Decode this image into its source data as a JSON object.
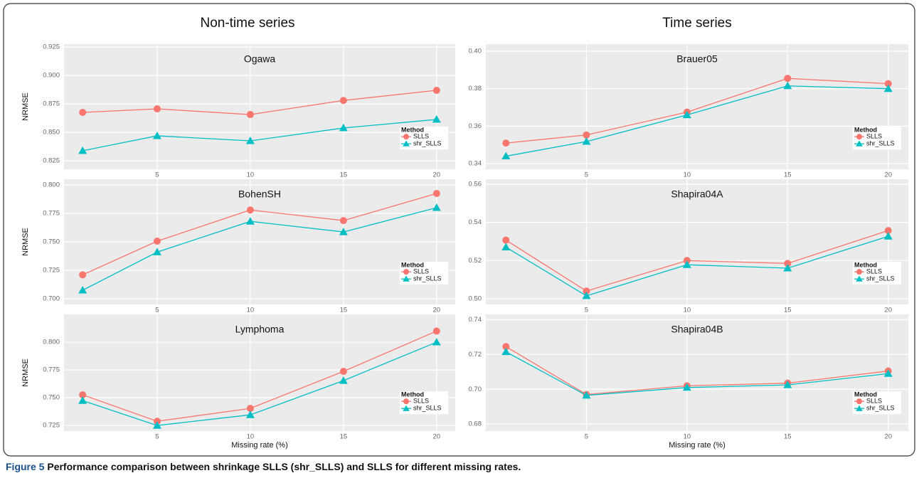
{
  "headings": [
    "Non-time series",
    "Time series"
  ],
  "caption": {
    "label": "Figure 5",
    "text": "Performance comparison between shrinkage SLLS (shr_SLLS) and SLLS for different missing rates."
  },
  "chart_data": [
    {
      "type": "line",
      "title": "Ogawa",
      "ylabel": "NRMSE",
      "legend_title": "Method",
      "legend": "right",
      "grid": true,
      "x": [
        1,
        5,
        10,
        15,
        20
      ],
      "xlim": [
        0,
        21
      ],
      "xticks": [
        5,
        10,
        15,
        20
      ],
      "ylim": [
        0.8175,
        0.9275
      ],
      "yticks": [
        0.825,
        {
          "value": 0.85,
          "label": "0.850"
        },
        0.875,
        {
          "value": 0.9,
          "label": "0.900"
        },
        0.925
      ],
      "series": [
        {
          "name": "SLLS",
          "color": "#f8766d",
          "marker": "circle",
          "values": [
            0.8675,
            0.8706,
            0.8656,
            0.878,
            0.8869
          ]
        },
        {
          "name": "shr_SLLS",
          "color": "#00bfc4",
          "marker": "triangle",
          "values": [
            0.8338,
            0.8469,
            0.8425,
            0.8538,
            0.8613
          ]
        }
      ]
    },
    {
      "type": "line",
      "title": "Brauer05",
      "legend_title": "Method",
      "legend": "right",
      "grid": true,
      "x": [
        1,
        5,
        10,
        15,
        20
      ],
      "xlim": [
        0,
        21
      ],
      "xticks": [
        5,
        10,
        15,
        20
      ],
      "ylim": [
        0.337,
        0.4038
      ],
      "yticks": [
        0.34,
        0.36,
        0.38,
        {
          "value": 0.4,
          "label": "0.40"
        }
      ],
      "series": [
        {
          "name": "SLLS",
          "color": "#f8766d",
          "marker": "circle",
          "values": [
            0.351,
            0.3553,
            0.3675,
            0.3855,
            0.3827
          ]
        },
        {
          "name": "shr_SLLS",
          "color": "#00bfc4",
          "marker": "triangle",
          "values": [
            0.344,
            0.3518,
            0.366,
            0.3815,
            0.38
          ]
        }
      ]
    },
    {
      "type": "line",
      "title": "BohenSH",
      "ylabel": "NRMSE",
      "legend_title": "Method",
      "legend": "right",
      "grid": true,
      "x": [
        1,
        5,
        10,
        15,
        20
      ],
      "xlim": [
        0,
        21
      ],
      "xticks": [
        5,
        10,
        15,
        20
      ],
      "ylim": [
        0.695,
        0.805
      ],
      "yticks": [
        {
          "value": 0.7,
          "label": "0.700"
        },
        0.725,
        {
          "value": 0.75,
          "label": "0.750"
        },
        0.775,
        {
          "value": 0.8,
          "label": "0.800"
        }
      ],
      "series": [
        {
          "name": "SLLS",
          "color": "#f8766d",
          "marker": "circle",
          "values": [
            0.721,
            0.7506,
            0.778,
            0.7687,
            0.7925
          ]
        },
        {
          "name": "shr_SLLS",
          "color": "#00bfc4",
          "marker": "triangle",
          "values": [
            0.7075,
            0.741,
            0.768,
            0.7587,
            0.78
          ]
        }
      ]
    },
    {
      "type": "line",
      "title": "Shapira04A",
      "legend_title": "Method",
      "legend": "right",
      "grid": true,
      "x": [
        1,
        5,
        10,
        15,
        20
      ],
      "xlim": [
        0,
        21
      ],
      "xticks": [
        5,
        10,
        15,
        20
      ],
      "ylim": [
        0.497,
        0.5626
      ],
      "yticks": [
        {
          "value": 0.5,
          "label": "0.50"
        },
        0.52,
        0.54,
        0.56
      ],
      "series": [
        {
          "name": "SLLS",
          "color": "#f8766d",
          "marker": "circle",
          "values": [
            0.5307,
            0.504,
            0.52,
            0.5185,
            0.5357
          ]
        },
        {
          "name": "shr_SLLS",
          "color": "#00bfc4",
          "marker": "triangle",
          "values": [
            0.527,
            0.5015,
            0.5178,
            0.516,
            0.5327
          ]
        }
      ]
    },
    {
      "type": "line",
      "title": "Lymphoma",
      "ylabel": "NRMSE",
      "xlabel": "Missing rate (%)",
      "legend_title": "Method",
      "legend": "right",
      "grid": true,
      "x": [
        1,
        5,
        10,
        15,
        20
      ],
      "xlim": [
        0,
        21
      ],
      "xticks": [
        5,
        10,
        15,
        20
      ],
      "ylim": [
        0.72,
        0.825
      ],
      "yticks": [
        0.725,
        {
          "value": 0.75,
          "label": "0.750"
        },
        0.775,
        {
          "value": 0.8,
          "label": "0.800"
        }
      ],
      "series": [
        {
          "name": "SLLS",
          "color": "#f8766d",
          "marker": "circle",
          "values": [
            0.7526,
            0.7288,
            0.7404,
            0.7737,
            0.81
          ]
        },
        {
          "name": "shr_SLLS",
          "color": "#00bfc4",
          "marker": "triangle",
          "values": [
            0.7474,
            0.725,
            0.7346,
            0.7654,
            0.8
          ]
        }
      ]
    },
    {
      "type": "line",
      "title": "Shapira04B",
      "xlabel": "Missing rate (%)",
      "legend_title": "Method",
      "legend": "right",
      "grid": true,
      "x": [
        1,
        5,
        10,
        15,
        20
      ],
      "xlim": [
        0,
        21
      ],
      "xticks": [
        5,
        10,
        15,
        20
      ],
      "ylim": [
        0.676,
        0.743
      ],
      "yticks": [
        0.68,
        {
          "value": 0.7,
          "label": "0.70"
        },
        0.72,
        0.74
      ],
      "series": [
        {
          "name": "SLLS",
          "color": "#f8766d",
          "marker": "circle",
          "values": [
            0.7245,
            0.697,
            0.702,
            0.7035,
            0.7105
          ]
        },
        {
          "name": "shr_SLLS",
          "color": "#00bfc4",
          "marker": "triangle",
          "values": [
            0.7215,
            0.6965,
            0.701,
            0.7025,
            0.709
          ]
        }
      ]
    }
  ]
}
